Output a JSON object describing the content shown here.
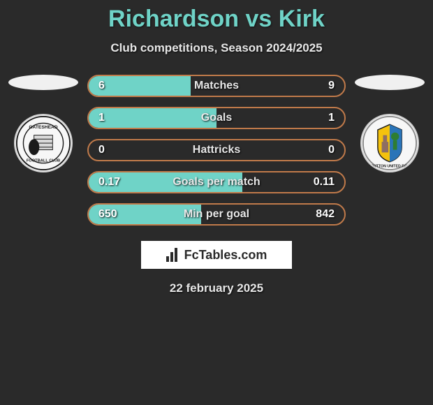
{
  "title": "Richardson vs Kirk",
  "subtitle": "Club competitions, Season 2024/2025",
  "date": "22 february 2025",
  "logo_text": "FcTables.com",
  "left_crest": {
    "name": "Gateshead",
    "bg_color": "#f7f7f7",
    "ring_color": "#1a1a1a"
  },
  "right_crest": {
    "name": "Sutton United",
    "bg_color": "#f7f7f7",
    "primary": "#2a74b8",
    "accent": "#f4c20d"
  },
  "stats": [
    {
      "label": "Matches",
      "left_value": "6",
      "right_value": "9",
      "left_raw": 6,
      "right_raw": 9,
      "fill_pct": 40,
      "fill_color": "#6fd3c7",
      "border_color": "#c07a4a"
    },
    {
      "label": "Goals",
      "left_value": "1",
      "right_value": "1",
      "left_raw": 1,
      "right_raw": 1,
      "fill_pct": 50,
      "fill_color": "#6fd3c7",
      "border_color": "#c07a4a"
    },
    {
      "label": "Hattricks",
      "left_value": "0",
      "right_value": "0",
      "left_raw": 0,
      "right_raw": 0,
      "fill_pct": 0,
      "fill_color": "#6fd3c7",
      "border_color": "#c07a4a"
    },
    {
      "label": "Goals per match",
      "left_value": "0.17",
      "right_value": "0.11",
      "left_raw": 0.17,
      "right_raw": 0.11,
      "fill_pct": 60,
      "fill_color": "#6fd3c7",
      "border_color": "#c07a4a"
    },
    {
      "label": "Min per goal",
      "left_value": "650",
      "right_value": "842",
      "left_raw": 650,
      "right_raw": 842,
      "fill_pct": 44,
      "fill_color": "#6fd3c7",
      "border_color": "#c07a4a"
    }
  ],
  "colors": {
    "background": "#2a2a2a",
    "title": "#6fd3c7",
    "text": "#e8e8e8"
  }
}
